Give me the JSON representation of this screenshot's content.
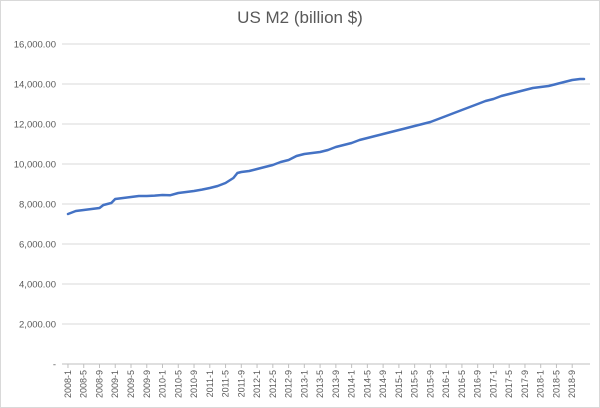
{
  "chart_data": {
    "type": "line",
    "title": "US M2 (billion $)",
    "xlabel": "",
    "ylabel": "",
    "ylim": [
      0,
      16000
    ],
    "grid": true,
    "legend": "none",
    "y_ticks": [
      {
        "value": 0,
        "label": "-"
      },
      {
        "value": 2000,
        "label": "2,000.00"
      },
      {
        "value": 4000,
        "label": "4,000.00"
      },
      {
        "value": 6000,
        "label": "6,000.00"
      },
      {
        "value": 8000,
        "label": "8,000.00"
      },
      {
        "value": 10000,
        "label": "10,000.00"
      },
      {
        "value": 12000,
        "label": "12,000.00"
      },
      {
        "value": 14000,
        "label": "14,000.00"
      },
      {
        "value": 16000,
        "label": "16,000.00"
      }
    ],
    "x_tick_labels": [
      "2008-1",
      "2008-5",
      "2008-9",
      "2009-1",
      "2009-5",
      "2009-9",
      "2010-1",
      "2010-5",
      "2010-9",
      "2011-1",
      "2011-5",
      "2011-9",
      "2012-1",
      "2012-5",
      "2012-9",
      "2013-1",
      "2013-5",
      "2013-9",
      "2014-1",
      "2014-5",
      "2014-9",
      "2015-1",
      "2015-5",
      "2015-9",
      "2016-1",
      "2016-5",
      "2016-9",
      "2017-1",
      "2017-5",
      "2017-9",
      "2018-1",
      "2018-5",
      "2018-9"
    ],
    "series": [
      {
        "color": "#4472c4",
        "points": [
          [
            "2008-1",
            7500
          ],
          [
            "2008-3",
            7650
          ],
          [
            "2008-5",
            7700
          ],
          [
            "2008-7",
            7750
          ],
          [
            "2008-9",
            7800
          ],
          [
            "2008-10",
            7950
          ],
          [
            "2008-12",
            8050
          ],
          [
            "2009-1",
            8250
          ],
          [
            "2009-3",
            8300
          ],
          [
            "2009-5",
            8350
          ],
          [
            "2009-7",
            8400
          ],
          [
            "2009-9",
            8400
          ],
          [
            "2009-11",
            8420
          ],
          [
            "2010-1",
            8450
          ],
          [
            "2010-3",
            8440
          ],
          [
            "2010-5",
            8550
          ],
          [
            "2010-7",
            8600
          ],
          [
            "2010-9",
            8650
          ],
          [
            "2010-11",
            8720
          ],
          [
            "2011-1",
            8800
          ],
          [
            "2011-3",
            8900
          ],
          [
            "2011-5",
            9050
          ],
          [
            "2011-7",
            9300
          ],
          [
            "2011-8",
            9550
          ],
          [
            "2011-9",
            9600
          ],
          [
            "2011-11",
            9650
          ],
          [
            "2012-1",
            9750
          ],
          [
            "2012-3",
            9850
          ],
          [
            "2012-5",
            9950
          ],
          [
            "2012-7",
            10100
          ],
          [
            "2012-9",
            10200
          ],
          [
            "2012-11",
            10400
          ],
          [
            "2013-1",
            10500
          ],
          [
            "2013-3",
            10550
          ],
          [
            "2013-5",
            10600
          ],
          [
            "2013-7",
            10700
          ],
          [
            "2013-9",
            10850
          ],
          [
            "2013-11",
            10950
          ],
          [
            "2014-1",
            11050
          ],
          [
            "2014-3",
            11200
          ],
          [
            "2014-5",
            11300
          ],
          [
            "2014-7",
            11400
          ],
          [
            "2014-9",
            11500
          ],
          [
            "2014-11",
            11600
          ],
          [
            "2015-1",
            11700
          ],
          [
            "2015-3",
            11800
          ],
          [
            "2015-5",
            11900
          ],
          [
            "2015-7",
            12000
          ],
          [
            "2015-9",
            12100
          ],
          [
            "2015-11",
            12250
          ],
          [
            "2016-1",
            12400
          ],
          [
            "2016-3",
            12550
          ],
          [
            "2016-5",
            12700
          ],
          [
            "2016-7",
            12850
          ],
          [
            "2016-9",
            13000
          ],
          [
            "2016-11",
            13150
          ],
          [
            "2017-1",
            13250
          ],
          [
            "2017-3",
            13400
          ],
          [
            "2017-5",
            13500
          ],
          [
            "2017-7",
            13600
          ],
          [
            "2017-9",
            13700
          ],
          [
            "2017-11",
            13800
          ],
          [
            "2018-1",
            13850
          ],
          [
            "2018-3",
            13900
          ],
          [
            "2018-5",
            14000
          ],
          [
            "2018-7",
            14100
          ],
          [
            "2018-9",
            14200
          ],
          [
            "2018-11",
            14250
          ],
          [
            "2018-12",
            14250
          ]
        ]
      }
    ]
  }
}
